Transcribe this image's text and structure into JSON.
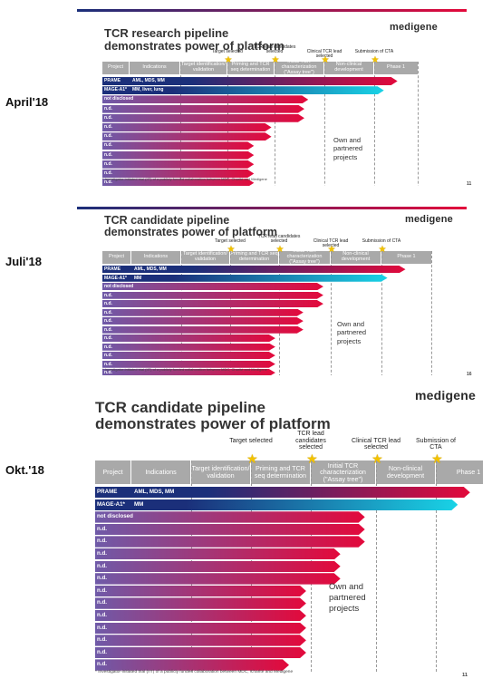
{
  "colors": {
    "red": "#e3093b",
    "navy": "#1b2f7a",
    "cyan": "#19d3e6",
    "purple": "#6f5aa8",
    "star": "#f2c200",
    "header": "#a9a9a9"
  },
  "date_labels": [
    "April'18",
    "Juli'18",
    "Okt.'18"
  ],
  "slides": [
    {
      "title_line1": "TCR research pipeline",
      "title_line2": "demonstrates power of platform",
      "logo": "medigene",
      "milestones": [
        "Target selected",
        "TCR lead candidates selected",
        "Clinical TCR lead selected",
        "Submission of CTA"
      ],
      "headers": [
        "Project",
        "Indications",
        "Target identification/ validation",
        "Priming and TCR seq determination",
        "Initial TCR characterization (\"Assay tree\")",
        "Non-clinical development",
        "Phase 1"
      ],
      "rows": [
        {
          "name": "PRAME",
          "ind": "AML, MDS, MM"
        },
        {
          "name": "MAGE-A1*",
          "ind": "MM, liver, lung"
        },
        {
          "name": "not disclosed",
          "ind": ""
        },
        {
          "name": "n.d.",
          "ind": ""
        },
        {
          "name": "n.d.",
          "ind": ""
        },
        {
          "name": "n.d.",
          "ind": ""
        },
        {
          "name": "n.d.",
          "ind": ""
        },
        {
          "name": "n.d.",
          "ind": ""
        },
        {
          "name": "n.d.",
          "ind": ""
        },
        {
          "name": "n.d.",
          "ind": ""
        },
        {
          "name": "n.d.",
          "ind": ""
        },
        {
          "name": "n.d.",
          "ind": ""
        },
        {
          "name": "n.d.",
          "ind": ""
        },
        {
          "name": "n.d.",
          "ind": ""
        }
      ],
      "note": [
        "Own and",
        "partnered",
        "projects"
      ],
      "footnote": "* Investigator-initiated trial (IIT) of a publicly funded collaboration between MDC, Charité and Medigene",
      "page": "11"
    },
    {
      "title_line1": "TCR candidate pipeline",
      "title_line2": "demonstrates power of platform",
      "logo": "medigene",
      "milestones": [
        "Target selected",
        "TCR lead candidates selected",
        "Clinical TCR lead selected",
        "Submission of CTA"
      ],
      "headers": [
        "Project",
        "Indications",
        "Target identification/ validation",
        "Priming and TCR seq determination",
        "Initial TCR characterization (\"Assay tree\")",
        "Non-clinical development",
        "Phase 1"
      ],
      "rows": [
        {
          "name": "PRAME",
          "ind": "AML, MDS, MM"
        },
        {
          "name": "MAGE-A1*",
          "ind": "MM"
        },
        {
          "name": "not disclosed",
          "ind": ""
        },
        {
          "name": "n.d.",
          "ind": ""
        },
        {
          "name": "n.d.",
          "ind": ""
        },
        {
          "name": "n.d.",
          "ind": ""
        },
        {
          "name": "n.d.",
          "ind": ""
        },
        {
          "name": "n.d.",
          "ind": ""
        },
        {
          "name": "n.d.",
          "ind": ""
        },
        {
          "name": "n.d.",
          "ind": ""
        },
        {
          "name": "n.d.",
          "ind": ""
        },
        {
          "name": "n.d.",
          "ind": ""
        },
        {
          "name": "n.d.",
          "ind": ""
        },
        {
          "name": "n.d.",
          "ind": ""
        },
        {
          "name": "n.d.",
          "ind": ""
        }
      ],
      "note": [
        "Own and",
        "partnered",
        "projects"
      ],
      "footnote": "* Investigator-initiated trial (IIT) of a publicly funded collaboration between MDC, Charité and Medigene",
      "page": "16"
    },
    {
      "title_line1": "TCR candidate pipeline",
      "title_line2": "demonstrates power of platform",
      "logo": "medigene",
      "milestones": [
        "Target selected",
        "TCR lead candidates selected",
        "Clinical TCR lead selected",
        "Submission of CTA"
      ],
      "headers": [
        "Project",
        "Indications",
        "Target identification/ validation",
        "Priming and TCR seq determination",
        "Initial TCR characterization (\"Assay tree\")",
        "Non-clinical development",
        "Phase 1"
      ],
      "rows": [
        {
          "name": "PRAME",
          "ind": "AML, MDS, MM"
        },
        {
          "name": "MAGE-A1*",
          "ind": "MM"
        },
        {
          "name": "not disclosed",
          "ind": ""
        },
        {
          "name": "n.d.",
          "ind": ""
        },
        {
          "name": "n.d.",
          "ind": ""
        },
        {
          "name": "n.d.",
          "ind": ""
        },
        {
          "name": "n.d.",
          "ind": ""
        },
        {
          "name": "n.d.",
          "ind": ""
        },
        {
          "name": "n.d.",
          "ind": ""
        },
        {
          "name": "n.d.",
          "ind": ""
        },
        {
          "name": "n.d.",
          "ind": ""
        },
        {
          "name": "n.d.",
          "ind": ""
        },
        {
          "name": "n.d.",
          "ind": ""
        },
        {
          "name": "n.d.",
          "ind": ""
        },
        {
          "name": "n.d.",
          "ind": ""
        }
      ],
      "note": [
        "Own and",
        "partnered",
        "projects"
      ],
      "footnote": "* Investigator-initiated trial (IIT) of a publicly funded collaboration between MDC, Charité and Medigene",
      "page": "11"
    }
  ]
}
